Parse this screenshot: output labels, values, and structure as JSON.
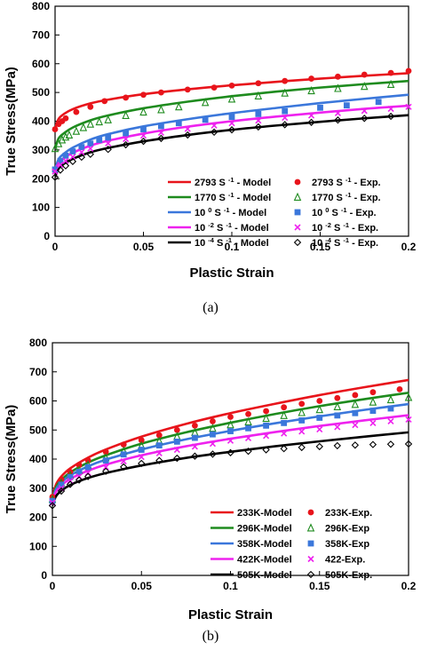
{
  "chart_data": [
    {
      "type": "line",
      "panel_label": "(a)",
      "xlabel": "Plastic Strain",
      "ylabel": "True Stress(MPa)",
      "xlim": [
        0,
        0.2
      ],
      "ylim": [
        0,
        800
      ],
      "xticks": [
        "0",
        "0.05",
        "0.1",
        "0.15",
        "0.2"
      ],
      "yticks": [
        "0",
        "100",
        "200",
        "300",
        "400",
        "500",
        "600",
        "700",
        "800"
      ],
      "grid": false,
      "legend_position": "bottom",
      "series": [
        {
          "name": "2793 S -1 - Model",
          "legend_label": "2793 S",
          "superscript": "-1",
          "legend_suffix": "- Model",
          "color": "#e8141b",
          "kind": "model",
          "x": [
            0,
            0.002,
            0.005,
            0.01,
            0.02,
            0.03,
            0.05,
            0.075,
            0.1,
            0.125,
            0.15,
            0.175,
            0.2
          ],
          "y": [
            375,
            408,
            425,
            442,
            462,
            475,
            494,
            511,
            525,
            537,
            548,
            558,
            567
          ]
        },
        {
          "name": "1770 S -1 - Model",
          "legend_label": "1770 S",
          "superscript": "-1",
          "legend_suffix": "- Model",
          "color": "#1e8b1e",
          "kind": "model",
          "x": [
            0,
            0.002,
            0.005,
            0.01,
            0.02,
            0.03,
            0.05,
            0.075,
            0.1,
            0.125,
            0.15,
            0.175,
            0.2
          ],
          "y": [
            305,
            340,
            358,
            378,
            403,
            420,
            445,
            468,
            487,
            503,
            517,
            529,
            540
          ]
        },
        {
          "name": "10 0 S -1 - Model",
          "legend_label": "10",
          "superscript": "0",
          "legend_mid": "S",
          "superscript2": "-1",
          "legend_suffix": "- Model",
          "color": "#3b77db",
          "kind": "model",
          "x": [
            0,
            0.002,
            0.005,
            0.01,
            0.02,
            0.03,
            0.05,
            0.075,
            0.1,
            0.125,
            0.15,
            0.175,
            0.2
          ],
          "y": [
            232,
            268,
            287,
            308,
            336,
            355,
            382,
            407,
            428,
            446,
            463,
            478,
            492
          ]
        },
        {
          "name": "10 -2 S -1 - Model",
          "legend_label": "10",
          "superscript": "-2",
          "legend_mid": "S",
          "superscript2": "-1",
          "legend_suffix": "- Model",
          "color": "#ee22ee",
          "kind": "model",
          "x": [
            0,
            0.002,
            0.005,
            0.01,
            0.02,
            0.03,
            0.05,
            0.075,
            0.1,
            0.125,
            0.15,
            0.175,
            0.2
          ],
          "y": [
            225,
            255,
            272,
            290,
            315,
            332,
            357,
            381,
            400,
            416,
            430,
            443,
            454
          ]
        },
        {
          "name": "10 -4 S -1 - Model",
          "legend_label": "10",
          "superscript": "-4",
          "legend_mid": "S",
          "superscript2": "-1",
          "legend_suffix": "- Model",
          "color": "#000000",
          "kind": "model",
          "x": [
            0,
            0.002,
            0.005,
            0.01,
            0.02,
            0.03,
            0.05,
            0.075,
            0.1,
            0.125,
            0.15,
            0.175,
            0.2
          ],
          "y": [
            205,
            235,
            252,
            269,
            292,
            307,
            330,
            352,
            370,
            385,
            398,
            410,
            421
          ]
        },
        {
          "name": "2793 S -1 - Exp.",
          "legend_label": "2793 S",
          "superscript": "-1",
          "legend_suffix": "- Exp.",
          "color": "#e8141b",
          "kind": "exp",
          "marker": "circle",
          "x": [
            0,
            0.002,
            0.004,
            0.006,
            0.012,
            0.02,
            0.028,
            0.04,
            0.05,
            0.06,
            0.075,
            0.09,
            0.1,
            0.115,
            0.13,
            0.145,
            0.16,
            0.175,
            0.19,
            0.2
          ],
          "y": [
            372,
            390,
            400,
            410,
            432,
            450,
            470,
            482,
            492,
            500,
            510,
            517,
            524,
            532,
            540,
            548,
            555,
            562,
            568,
            575
          ]
        },
        {
          "name": "1770 S -1 - Exp.",
          "legend_label": "1770 S",
          "superscript": "-1",
          "legend_suffix": "- Exp.",
          "color": "#1e8b1e",
          "kind": "exp",
          "marker": "triangle-open",
          "x": [
            0,
            0.002,
            0.004,
            0.006,
            0.008,
            0.012,
            0.016,
            0.02,
            0.025,
            0.03,
            0.04,
            0.05,
            0.06,
            0.07,
            0.085,
            0.1,
            0.115,
            0.13,
            0.145,
            0.16,
            0.175,
            0.19
          ],
          "y": [
            305,
            322,
            335,
            345,
            352,
            365,
            378,
            390,
            398,
            405,
            420,
            432,
            440,
            450,
            465,
            477,
            488,
            498,
            506,
            514,
            521,
            528
          ]
        },
        {
          "name": "10 0 S -1 - Exp.",
          "legend_label": "10",
          "superscript": "0",
          "legend_mid": "S",
          "superscript2": "-1",
          "legend_suffix": "- Exp.",
          "color": "#3b77db",
          "kind": "exp",
          "marker": "square",
          "x": [
            0,
            0.003,
            0.006,
            0.01,
            0.015,
            0.02,
            0.025,
            0.03,
            0.04,
            0.05,
            0.06,
            0.07,
            0.085,
            0.1,
            0.115,
            0.13,
            0.15,
            0.165,
            0.183
          ],
          "y": [
            232,
            262,
            280,
            295,
            310,
            322,
            335,
            343,
            358,
            372,
            383,
            393,
            405,
            415,
            425,
            435,
            447,
            455,
            467
          ]
        },
        {
          "name": "10 -2 S -1 - Exp.",
          "legend_label": "10",
          "superscript": "-2",
          "legend_mid": "S",
          "superscript2": "-1",
          "legend_suffix": "- Exp.",
          "color": "#ee22ee",
          "kind": "exp",
          "marker": "x",
          "x": [
            0,
            0.003,
            0.006,
            0.01,
            0.015,
            0.02,
            0.03,
            0.04,
            0.05,
            0.06,
            0.075,
            0.09,
            0.1,
            0.115,
            0.13,
            0.145,
            0.16,
            0.175,
            0.19,
            0.2
          ],
          "y": [
            225,
            248,
            262,
            276,
            292,
            305,
            323,
            338,
            350,
            360,
            373,
            385,
            393,
            402,
            412,
            420,
            428,
            436,
            443,
            450
          ]
        },
        {
          "name": "10 -4 S -1 - Exp.",
          "legend_label": "10",
          "superscript": "-4",
          "legend_mid": "S",
          "superscript2": "-1",
          "legend_suffix": "- Exp.",
          "color": "#000000",
          "kind": "exp",
          "marker": "diamond-open",
          "x": [
            0,
            0.003,
            0.006,
            0.01,
            0.015,
            0.02,
            0.03,
            0.04,
            0.05,
            0.06,
            0.075,
            0.09,
            0.1,
            0.115,
            0.13,
            0.145,
            0.16,
            0.175,
            0.19
          ],
          "y": [
            205,
            230,
            245,
            260,
            275,
            285,
            302,
            318,
            330,
            340,
            352,
            362,
            370,
            380,
            388,
            396,
            404,
            410,
            417
          ]
        }
      ]
    },
    {
      "type": "line",
      "panel_label": "(b)",
      "xlabel": "Plastic Strain",
      "ylabel": "True Stress(MPa)",
      "xlim": [
        0,
        0.2
      ],
      "ylim": [
        0,
        800
      ],
      "xticks": [
        "0",
        "0.05",
        "0.1",
        "0.15",
        "0.2"
      ],
      "yticks": [
        "0",
        "100",
        "200",
        "300",
        "400",
        "500",
        "600",
        "700",
        "800"
      ],
      "grid": false,
      "legend_position": "bottom",
      "series": [
        {
          "name": "233K-Model",
          "legend_label": "233K-Model",
          "color": "#e8141b",
          "kind": "model",
          "x": [
            0,
            0.002,
            0.005,
            0.01,
            0.02,
            0.03,
            0.05,
            0.075,
            0.1,
            0.125,
            0.15,
            0.175,
            0.2
          ],
          "y": [
            268,
            312,
            340,
            368,
            405,
            433,
            477,
            521,
            558,
            590,
            620,
            647,
            672
          ]
        },
        {
          "name": "296K-Model",
          "legend_label": "296K-Model",
          "color": "#1e8b1e",
          "kind": "model",
          "x": [
            0,
            0.002,
            0.005,
            0.01,
            0.02,
            0.03,
            0.05,
            0.075,
            0.1,
            0.125,
            0.15,
            0.175,
            0.2
          ],
          "y": [
            262,
            303,
            328,
            354,
            388,
            413,
            453,
            492,
            525,
            555,
            582,
            606,
            628
          ]
        },
        {
          "name": "358K-Model",
          "legend_label": "358K-Model",
          "color": "#3b77db",
          "kind": "model",
          "x": [
            0,
            0.002,
            0.005,
            0.01,
            0.02,
            0.03,
            0.05,
            0.075,
            0.1,
            0.125,
            0.15,
            0.175,
            0.2
          ],
          "y": [
            256,
            296,
            320,
            344,
            375,
            398,
            433,
            468,
            497,
            523,
            547,
            569,
            589
          ]
        },
        {
          "name": "422K-Model",
          "legend_label": "422K-Model",
          "color": "#ee22ee",
          "kind": "model",
          "x": [
            0,
            0.002,
            0.005,
            0.01,
            0.02,
            0.03,
            0.05,
            0.075,
            0.1,
            0.125,
            0.15,
            0.175,
            0.2
          ],
          "y": [
            250,
            287,
            309,
            332,
            360,
            381,
            413,
            444,
            470,
            493,
            514,
            533,
            551
          ]
        },
        {
          "name": "505K-Model",
          "legend_label": "505K-Model",
          "color": "#000000",
          "kind": "model",
          "x": [
            0,
            0.002,
            0.005,
            0.01,
            0.02,
            0.03,
            0.05,
            0.075,
            0.1,
            0.125,
            0.15,
            0.175,
            0.2
          ],
          "y": [
            240,
            272,
            291,
            311,
            335,
            352,
            378,
            404,
            425,
            444,
            461,
            477,
            492
          ]
        },
        {
          "name": "233K-Exp.",
          "legend_label": "233K-Exp.",
          "color": "#e8141b",
          "kind": "exp",
          "marker": "circle",
          "x": [
            0,
            0.005,
            0.01,
            0.015,
            0.02,
            0.03,
            0.04,
            0.05,
            0.06,
            0.07,
            0.08,
            0.09,
            0.1,
            0.11,
            0.12,
            0.13,
            0.14,
            0.15,
            0.16,
            0.17,
            0.18,
            0.195
          ],
          "y": [
            270,
            330,
            356,
            380,
            396,
            425,
            450,
            465,
            482,
            500,
            515,
            530,
            545,
            555,
            565,
            578,
            590,
            600,
            610,
            620,
            630,
            640
          ]
        },
        {
          "name": "296K-Exp",
          "legend_label": "296K-Exp",
          "color": "#1e8b1e",
          "kind": "exp",
          "marker": "triangle-open",
          "x": [
            0,
            0.005,
            0.01,
            0.015,
            0.02,
            0.03,
            0.04,
            0.05,
            0.06,
            0.07,
            0.08,
            0.09,
            0.1,
            0.11,
            0.12,
            0.13,
            0.14,
            0.15,
            0.16,
            0.17,
            0.18,
            0.19,
            0.2
          ],
          "y": [
            262,
            318,
            345,
            362,
            380,
            405,
            428,
            446,
            462,
            478,
            492,
            506,
            518,
            528,
            540,
            550,
            560,
            570,
            580,
            588,
            596,
            604,
            612
          ]
        },
        {
          "name": "358K-Exp",
          "legend_label": "358K-Exp",
          "color": "#3b77db",
          "kind": "exp",
          "marker": "square",
          "x": [
            0,
            0.005,
            0.01,
            0.015,
            0.02,
            0.03,
            0.04,
            0.05,
            0.06,
            0.07,
            0.08,
            0.09,
            0.1,
            0.11,
            0.12,
            0.13,
            0.14,
            0.15,
            0.16,
            0.17,
            0.18,
            0.19
          ],
          "y": [
            256,
            312,
            338,
            356,
            372,
            395,
            416,
            432,
            447,
            460,
            473,
            485,
            496,
            506,
            515,
            524,
            533,
            542,
            550,
            558,
            566,
            574
          ]
        },
        {
          "name": "422-Exp.",
          "legend_label": "422-Exp.",
          "color": "#ee22ee",
          "kind": "exp",
          "marker": "x",
          "x": [
            0,
            0.005,
            0.01,
            0.015,
            0.02,
            0.03,
            0.04,
            0.05,
            0.06,
            0.07,
            0.08,
            0.09,
            0.1,
            0.11,
            0.12,
            0.13,
            0.14,
            0.15,
            0.16,
            0.17,
            0.18,
            0.19,
            0.2
          ],
          "y": [
            250,
            300,
            325,
            340,
            353,
            372,
            392,
            407,
            420,
            432,
            443,
            453,
            463,
            472,
            480,
            488,
            495,
            502,
            510,
            517,
            524,
            530,
            536
          ]
        },
        {
          "name": "505K-Exp.",
          "legend_label": "505K-Exp.",
          "color": "#000000",
          "kind": "exp",
          "marker": "diamond-open",
          "x": [
            0,
            0.005,
            0.01,
            0.015,
            0.02,
            0.03,
            0.04,
            0.05,
            0.06,
            0.07,
            0.08,
            0.09,
            0.1,
            0.11,
            0.12,
            0.13,
            0.14,
            0.15,
            0.16,
            0.17,
            0.18,
            0.19,
            0.2
          ],
          "y": [
            240,
            290,
            313,
            328,
            340,
            358,
            373,
            385,
            395,
            403,
            410,
            417,
            422,
            427,
            432,
            436,
            440,
            443,
            446,
            448,
            450,
            451,
            452
          ]
        }
      ]
    }
  ]
}
